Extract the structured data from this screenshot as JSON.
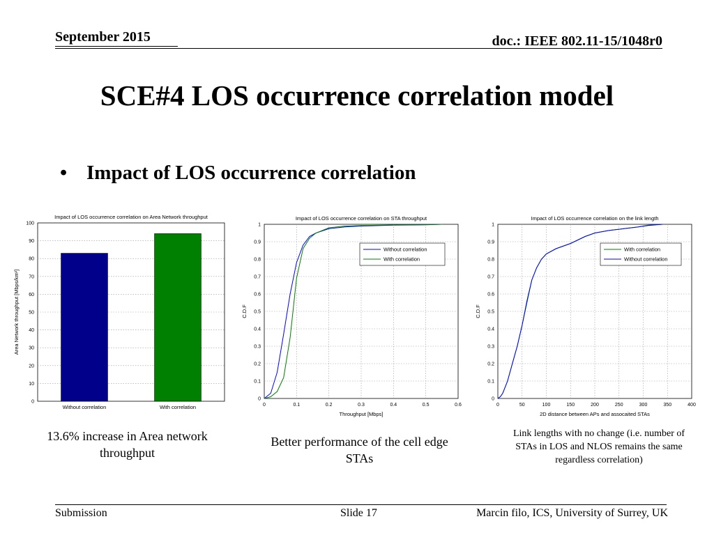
{
  "header": {
    "date": "September 2015",
    "doc": "doc.: IEEE 802.11-15/1048r0"
  },
  "title": "SCE#4 LOS occurrence correlation model",
  "bullet": "Impact of LOS occurrence correlation",
  "captions": {
    "left": "13.6% increase in Area network throughput",
    "middle": "Better performance of the cell edge STAs",
    "right": "Link lengths with no change (i.e. number of STAs in LOS and NLOS remains the same regardless correlation)"
  },
  "footer": {
    "left": "Submission",
    "center": "Slide 17",
    "right": "Marcin filo, ICS, University of Surrey, UK"
  },
  "colors": {
    "blue": "#00008b",
    "green": "#008000",
    "axis": "#000000",
    "grid": "#9a9a9a"
  },
  "chart_data": [
    {
      "type": "bar",
      "title": "Impact of LOS occurrence correlation on Area Network throughput",
      "ylabel": "Area Network throughput [Mbps/km²]",
      "xlabel": "",
      "categories": [
        "Without correlation",
        "With correlation"
      ],
      "values": [
        83,
        94
      ],
      "bar_colors": [
        "#00008b",
        "#008000"
      ],
      "ylim": [
        0,
        100
      ],
      "yticks": [
        0,
        10,
        20,
        30,
        40,
        50,
        60,
        70,
        80,
        90,
        100
      ],
      "grid": true
    },
    {
      "type": "line",
      "title": "Impact of LOS occurrence correlation on STA throughput",
      "xlabel": "Throughput [Mbps]",
      "ylabel": "C.D.F",
      "xlim": [
        0,
        0.6
      ],
      "ylim": [
        0,
        1
      ],
      "xticks": [
        0,
        0.1,
        0.2,
        0.3,
        0.4,
        0.5,
        0.6
      ],
      "yticks": [
        0,
        0.1,
        0.2,
        0.3,
        0.4,
        0.5,
        0.6,
        0.7,
        0.8,
        0.9,
        1
      ],
      "legend_position": "right",
      "grid": true,
      "series": [
        {
          "name": "Without correlation",
          "color": "#0000ff",
          "x": [
            0.0,
            0.02,
            0.04,
            0.06,
            0.08,
            0.1,
            0.12,
            0.14,
            0.16,
            0.2,
            0.25,
            0.3,
            0.4,
            0.5,
            0.55
          ],
          "y": [
            0.0,
            0.03,
            0.15,
            0.37,
            0.6,
            0.78,
            0.88,
            0.93,
            0.95,
            0.975,
            0.985,
            0.99,
            0.995,
            0.997,
            1.0
          ]
        },
        {
          "name": "With correlation",
          "color": "#008000",
          "x": [
            0.0,
            0.02,
            0.04,
            0.06,
            0.08,
            0.1,
            0.12,
            0.14,
            0.16,
            0.2,
            0.25,
            0.3,
            0.4,
            0.5,
            0.55
          ],
          "y": [
            0.0,
            0.01,
            0.04,
            0.12,
            0.35,
            0.69,
            0.86,
            0.92,
            0.95,
            0.98,
            0.99,
            0.993,
            0.996,
            0.998,
            1.0
          ]
        }
      ]
    },
    {
      "type": "line",
      "title": "Impact of LOS occurrence correlation on the link length",
      "xlabel": "2D distance between APs and assocaited STAs",
      "ylabel": "C.D.F",
      "xlim": [
        0,
        400
      ],
      "ylim": [
        0,
        1
      ],
      "xticks": [
        0,
        50,
        100,
        150,
        200,
        250,
        300,
        350,
        400
      ],
      "yticks": [
        0,
        0.1,
        0.2,
        0.3,
        0.4,
        0.5,
        0.6,
        0.7,
        0.8,
        0.9,
        1
      ],
      "legend_position": "top-right",
      "grid": true,
      "series": [
        {
          "name": "With correlation",
          "color": "#008000",
          "x": [
            0,
            5,
            10,
            20,
            30,
            40,
            50,
            60,
            70,
            80,
            90,
            100,
            120,
            150,
            180,
            200,
            230,
            260,
            290,
            310,
            340
          ],
          "y": [
            0.0,
            0.01,
            0.03,
            0.1,
            0.2,
            0.3,
            0.42,
            0.55,
            0.68,
            0.75,
            0.8,
            0.83,
            0.86,
            0.89,
            0.93,
            0.95,
            0.965,
            0.975,
            0.985,
            0.995,
            1.0
          ]
        },
        {
          "name": "Without correlation",
          "color": "#0000ff",
          "x": [
            0,
            5,
            10,
            20,
            30,
            40,
            50,
            60,
            70,
            80,
            90,
            100,
            120,
            150,
            180,
            200,
            230,
            260,
            290,
            310,
            340
          ],
          "y": [
            0.0,
            0.01,
            0.03,
            0.1,
            0.2,
            0.3,
            0.42,
            0.56,
            0.68,
            0.75,
            0.8,
            0.83,
            0.86,
            0.89,
            0.93,
            0.95,
            0.965,
            0.975,
            0.985,
            0.993,
            1.0
          ]
        }
      ]
    }
  ]
}
